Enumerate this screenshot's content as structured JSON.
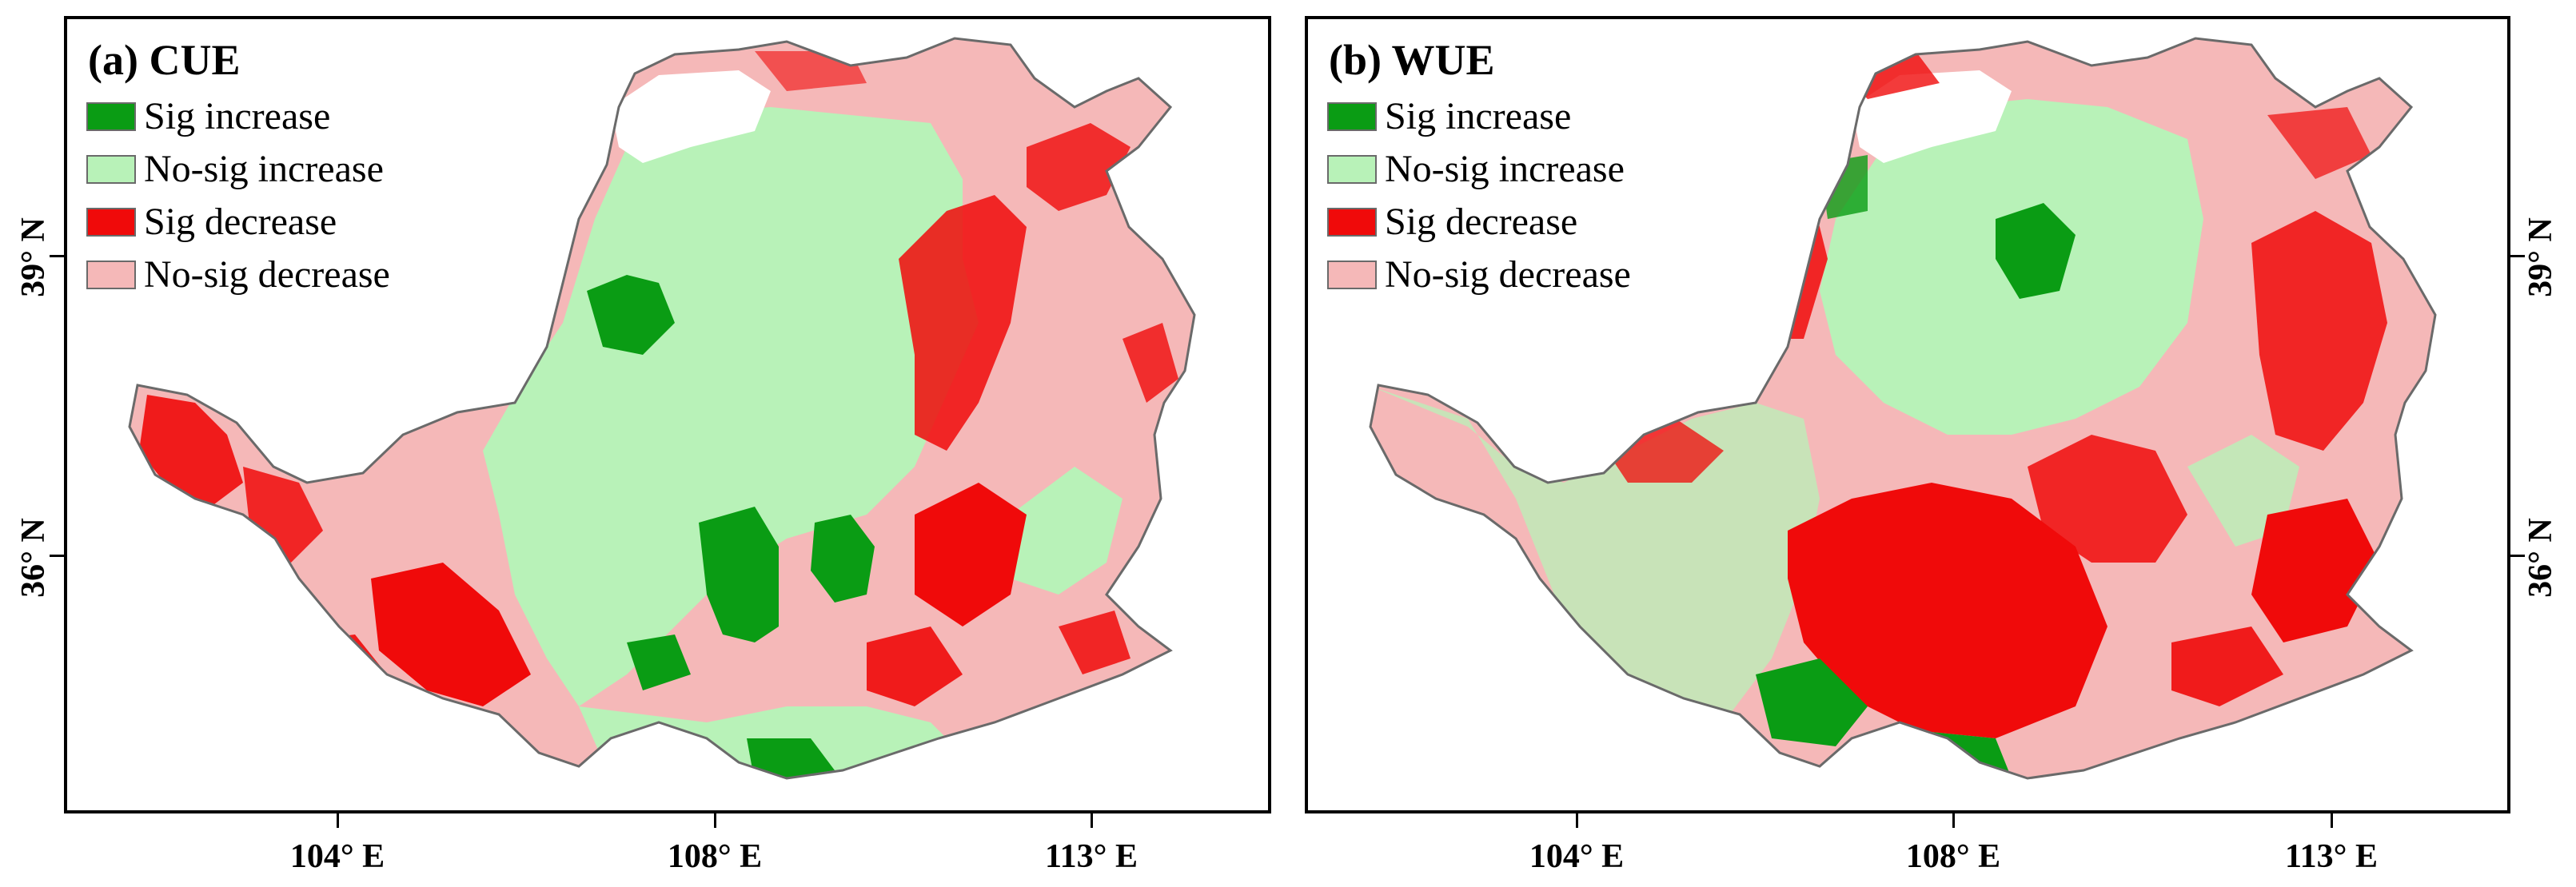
{
  "panels": [
    {
      "id": "a",
      "title": "(a) CUE",
      "legend": [
        {
          "label": "Sig increase",
          "color": "#0a9c14"
        },
        {
          "label": "No-sig increase",
          "color": "#b8f2b8"
        },
        {
          "label": "Sig decrease",
          "color": "#f00a0a"
        },
        {
          "label": "No-sig decrease",
          "color": "#f5b8b8"
        }
      ]
    },
    {
      "id": "b",
      "title": "(b) WUE",
      "legend": [
        {
          "label": "Sig increase",
          "color": "#0a9c14"
        },
        {
          "label": "No-sig increase",
          "color": "#b8f2b8"
        },
        {
          "label": "Sig decrease",
          "color": "#f00a0a"
        },
        {
          "label": "No-sig decrease",
          "color": "#f5b8b8"
        }
      ]
    }
  ],
  "axes": {
    "x_ticks": [
      "104° E",
      "108° E",
      "113° E"
    ],
    "y_ticks": [
      "39° N",
      "36° N"
    ]
  }
}
